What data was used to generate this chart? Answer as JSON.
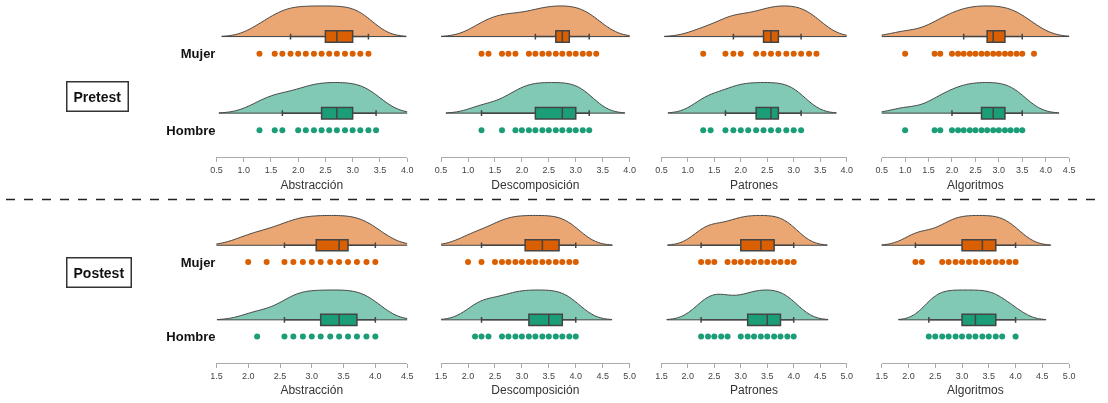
{
  "chart_data": [
    {
      "type": "box",
      "orientation": "horizontal",
      "categories": [
        "Mujer",
        "Hombre"
      ],
      "xlabel": "Abstracción",
      "xlim": [
        0.5,
        4.0
      ],
      "xticks": [
        0.5,
        {
          "value": 1,
          "label": "1.0"
        },
        1.5,
        {
          "value": 2,
          "label": "2.0"
        },
        2.5,
        {
          "value": 3,
          "label": "3.0"
        },
        3.5,
        {
          "value": 4,
          "label": "4.0"
        }
      ],
      "colors": [
        "#d95f02",
        "#1b9e77"
      ],
      "annotations": [
        "Pretest"
      ],
      "boxes": [
        {
          "low": 1.86,
          "q1": 2.5,
          "median": 2.71,
          "q3": 3.0,
          "high": 3.29
        },
        {
          "low": 1.71,
          "q1": 2.43,
          "median": 2.71,
          "q3": 3.0,
          "high": 3.43
        }
      ],
      "series": [
        {
          "type": "scatter",
          "color": "#d95f02",
          "x": [
            "Mujer",
            "Mujer",
            "Mujer",
            "Mujer",
            "Mujer",
            "Mujer",
            "Mujer",
            "Mujer",
            "Mujer",
            "Mujer",
            "Mujer",
            "Mujer",
            "Mujer",
            "Mujer"
          ],
          "values": [
            1.29,
            1.57,
            1.71,
            1.86,
            2.0,
            2.14,
            2.29,
            2.43,
            2.57,
            2.71,
            2.86,
            3.0,
            3.14,
            3.29
          ]
        },
        {
          "type": "scatter",
          "color": "#1b9e77",
          "x": [
            "Hombre",
            "Hombre",
            "Hombre",
            "Hombre",
            "Hombre",
            "Hombre",
            "Hombre",
            "Hombre",
            "Hombre",
            "Hombre",
            "Hombre",
            "Hombre",
            "Hombre",
            "Hombre"
          ],
          "values": [
            1.29,
            1.57,
            1.71,
            2.0,
            2.14,
            2.29,
            2.43,
            2.57,
            2.71,
            2.86,
            3.0,
            3.14,
            3.29,
            3.43
          ]
        }
      ]
    },
    {
      "type": "box",
      "orientation": "horizontal",
      "categories": [
        "Mujer",
        "Hombre"
      ],
      "tick_labels": "x",
      "xlabel": "Descomposición",
      "xlim": [
        0.5,
        4.0
      ],
      "xticks": [
        0.5,
        {
          "value": 1,
          "label": "1.0"
        },
        1.5,
        {
          "value": 2,
          "label": "2.0"
        },
        2.5,
        {
          "value": 3,
          "label": "3.0"
        },
        3.5,
        {
          "value": 4,
          "label": "4.0"
        }
      ],
      "colors": [
        "#d95f02",
        "#1b9e77"
      ],
      "boxes": [
        {
          "low": 2.25,
          "q1": 2.63,
          "median": 2.75,
          "q3": 2.88,
          "high": 3.25
        },
        {
          "low": 1.25,
          "q1": 2.25,
          "median": 2.75,
          "q3": 3.0,
          "high": 3.25
        }
      ],
      "series": [
        {
          "type": "scatter",
          "color": "#d95f02",
          "x": [
            "Mujer",
            "Mujer",
            "Mujer",
            "Mujer",
            "Mujer",
            "Mujer",
            "Mujer",
            "Mujer",
            "Mujer",
            "Mujer",
            "Mujer",
            "Mujer",
            "Mujer",
            "Mujer",
            "Mujer",
            "Mujer"
          ],
          "values": [
            1.25,
            1.38,
            1.63,
            1.75,
            1.88,
            2.13,
            2.25,
            2.38,
            2.5,
            2.63,
            2.75,
            2.88,
            3.0,
            3.13,
            3.25,
            3.38
          ]
        },
        {
          "type": "scatter",
          "color": "#1b9e77",
          "x": [
            "Hombre",
            "Hombre",
            "Hombre",
            "Hombre",
            "Hombre",
            "Hombre",
            "Hombre",
            "Hombre",
            "Hombre",
            "Hombre",
            "Hombre",
            "Hombre",
            "Hombre",
            "Hombre"
          ],
          "values": [
            1.25,
            1.63,
            1.88,
            2.0,
            2.13,
            2.25,
            2.38,
            2.5,
            2.63,
            2.75,
            2.88,
            3.0,
            3.13,
            3.25
          ]
        }
      ]
    },
    {
      "type": "box",
      "orientation": "horizontal",
      "categories": [
        "Mujer",
        "Hombre"
      ],
      "tick_labels": "x",
      "xlabel": "Patrones",
      "xlim": [
        0.5,
        4.0
      ],
      "xticks": [
        0.5,
        {
          "value": 1,
          "label": "1.0"
        },
        1.5,
        {
          "value": 2,
          "label": "2.0"
        },
        2.5,
        {
          "value": 3,
          "label": "3.0"
        },
        3.5,
        {
          "value": 4,
          "label": "4.0"
        }
      ],
      "colors": [
        "#d95f02",
        "#1b9e77"
      ],
      "boxes": [
        {
          "low": 1.86,
          "q1": 2.43,
          "median": 2.57,
          "q3": 2.71,
          "high": 3.14
        },
        {
          "low": 1.71,
          "q1": 2.29,
          "median": 2.57,
          "q3": 2.71,
          "high": 3.14
        }
      ],
      "series": [
        {
          "type": "scatter",
          "color": "#d95f02",
          "x": [
            "Mujer",
            "Mujer",
            "Mujer",
            "Mujer",
            "Mujer",
            "Mujer",
            "Mujer",
            "Mujer",
            "Mujer",
            "Mujer",
            "Mujer",
            "Mujer",
            "Mujer"
          ],
          "values": [
            1.29,
            1.71,
            1.86,
            2.0,
            2.29,
            2.43,
            2.57,
            2.71,
            2.86,
            3.0,
            3.14,
            3.29,
            3.43
          ]
        },
        {
          "type": "scatter",
          "color": "#1b9e77",
          "x": [
            "Hombre",
            "Hombre",
            "Hombre",
            "Hombre",
            "Hombre",
            "Hombre",
            "Hombre",
            "Hombre",
            "Hombre",
            "Hombre",
            "Hombre",
            "Hombre",
            "Hombre"
          ],
          "values": [
            1.29,
            1.43,
            1.71,
            1.86,
            2.0,
            2.14,
            2.29,
            2.43,
            2.57,
            2.71,
            2.86,
            3.0,
            3.14
          ]
        }
      ]
    },
    {
      "type": "box",
      "orientation": "horizontal",
      "categories": [
        "Mujer",
        "Hombre"
      ],
      "tick_labels": "x",
      "xlabel": "Algoritmos",
      "xlim": [
        0.5,
        4.5
      ],
      "xticks": [
        0.5,
        {
          "value": 1,
          "label": "1.0"
        },
        1.5,
        {
          "value": 2,
          "label": "2.0"
        },
        2.5,
        {
          "value": 3,
          "label": "3.0"
        },
        3.5,
        {
          "value": 4,
          "label": "4.0"
        },
        4.5
      ],
      "colors": [
        "#d95f02",
        "#1b9e77"
      ],
      "boxes": [
        {
          "low": 2.25,
          "q1": 2.75,
          "median": 2.88,
          "q3": 3.13,
          "high": 3.5
        },
        {
          "low": 2.0,
          "q1": 2.63,
          "median": 2.88,
          "q3": 3.13,
          "high": 3.5
        }
      ],
      "series": [
        {
          "type": "scatter",
          "color": "#d95f02",
          "x": [
            "Mujer",
            "Mujer",
            "Mujer",
            "Mujer",
            "Mujer",
            "Mujer",
            "Mujer",
            "Mujer",
            "Mujer",
            "Mujer",
            "Mujer",
            "Mujer",
            "Mujer",
            "Mujer",
            "Mujer",
            "Mujer",
            "Mujer"
          ],
          "values": [
            1.0,
            1.63,
            1.75,
            2.0,
            2.13,
            2.25,
            2.38,
            2.5,
            2.63,
            2.75,
            2.88,
            3.0,
            3.13,
            3.25,
            3.38,
            3.5,
            3.75
          ]
        },
        {
          "type": "scatter",
          "color": "#1b9e77",
          "x": [
            "Hombre",
            "Hombre",
            "Hombre",
            "Hombre",
            "Hombre",
            "Hombre",
            "Hombre",
            "Hombre",
            "Hombre",
            "Hombre",
            "Hombre",
            "Hombre",
            "Hombre",
            "Hombre",
            "Hombre",
            "Hombre"
          ],
          "values": [
            1.0,
            1.63,
            1.75,
            2.0,
            2.13,
            2.25,
            2.38,
            2.5,
            2.63,
            2.75,
            2.88,
            3.0,
            3.13,
            3.25,
            3.38,
            3.5
          ]
        }
      ]
    },
    {
      "type": "box",
      "orientation": "horizontal",
      "categories": [
        "Mujer",
        "Hombre"
      ],
      "xlabel": "Abstracción",
      "xlim": [
        1.5,
        4.5
      ],
      "xticks": [
        1.5,
        {
          "value": 2,
          "label": "2.0"
        },
        2.5,
        {
          "value": 3,
          "label": "3.0"
        },
        3.5,
        {
          "value": 4,
          "label": "4.0"
        },
        4.5
      ],
      "colors": [
        "#d95f02",
        "#1b9e77"
      ],
      "annotations": [
        "Postest"
      ],
      "boxes": [
        {
          "low": 2.57,
          "q1": 3.07,
          "median": 3.43,
          "q3": 3.57,
          "high": 4.0
        },
        {
          "low": 2.57,
          "q1": 3.14,
          "median": 3.43,
          "q3": 3.71,
          "high": 4.0
        }
      ],
      "series": [
        {
          "type": "scatter",
          "color": "#d95f02",
          "x": [
            "Mujer",
            "Mujer",
            "Mujer",
            "Mujer",
            "Mujer",
            "Mujer",
            "Mujer",
            "Mujer",
            "Mujer",
            "Mujer",
            "Mujer",
            "Mujer",
            "Mujer"
          ],
          "values": [
            2.0,
            2.29,
            2.57,
            2.71,
            2.86,
            3.0,
            3.14,
            3.29,
            3.43,
            3.57,
            3.71,
            3.86,
            4.0
          ]
        },
        {
          "type": "scatter",
          "color": "#1b9e77",
          "x": [
            "Hombre",
            "Hombre",
            "Hombre",
            "Hombre",
            "Hombre",
            "Hombre",
            "Hombre",
            "Hombre",
            "Hombre",
            "Hombre",
            "Hombre",
            "Hombre"
          ],
          "values": [
            2.14,
            2.57,
            2.71,
            2.86,
            3.0,
            3.14,
            3.29,
            3.43,
            3.57,
            3.71,
            3.86,
            4.0
          ]
        }
      ]
    },
    {
      "type": "box",
      "orientation": "horizontal",
      "categories": [
        "Mujer",
        "Hombre"
      ],
      "tick_labels": "x",
      "xlabel": "Descomposición",
      "xlim": [
        1.5,
        5.0
      ],
      "xticks": [
        1.5,
        {
          "value": 2,
          "label": "2.0"
        },
        2.5,
        {
          "value": 3,
          "label": "3.0"
        },
        3.5,
        {
          "value": 4,
          "label": "4.0"
        },
        4.5,
        {
          "value": 5,
          "label": "5.0"
        }
      ],
      "colors": [
        "#d95f02",
        "#1b9e77"
      ],
      "boxes": [
        {
          "low": 2.25,
          "q1": 3.06,
          "median": 3.38,
          "q3": 3.69,
          "high": 4.0
        },
        {
          "low": 2.25,
          "q1": 3.13,
          "median": 3.5,
          "q3": 3.75,
          "high": 4.0
        }
      ],
      "series": [
        {
          "type": "scatter",
          "color": "#d95f02",
          "x": [
            "Mujer",
            "Mujer",
            "Mujer",
            "Mujer",
            "Mujer",
            "Mujer",
            "Mujer",
            "Mujer",
            "Mujer",
            "Mujer",
            "Mujer",
            "Mujer",
            "Mujer",
            "Mujer",
            "Mujer"
          ],
          "values": [
            2.0,
            2.25,
            2.5,
            2.63,
            2.75,
            2.88,
            3.0,
            3.13,
            3.25,
            3.38,
            3.5,
            3.63,
            3.75,
            3.88,
            4.0
          ]
        },
        {
          "type": "scatter",
          "color": "#1b9e77",
          "x": [
            "Hombre",
            "Hombre",
            "Hombre",
            "Hombre",
            "Hombre",
            "Hombre",
            "Hombre",
            "Hombre",
            "Hombre",
            "Hombre",
            "Hombre",
            "Hombre",
            "Hombre",
            "Hombre",
            "Hombre"
          ],
          "values": [
            2.13,
            2.25,
            2.38,
            2.63,
            2.75,
            2.88,
            3.0,
            3.13,
            3.25,
            3.38,
            3.5,
            3.63,
            3.75,
            3.88,
            4.0
          ]
        }
      ]
    },
    {
      "type": "box",
      "orientation": "horizontal",
      "categories": [
        "Mujer",
        "Hombre"
      ],
      "tick_labels": "x",
      "xlabel": "Patrones",
      "xlim": [
        1.5,
        5.0
      ],
      "xticks": [
        1.5,
        {
          "value": 2,
          "label": "2.0"
        },
        2.5,
        {
          "value": 3,
          "label": "3.0"
        },
        3.5,
        {
          "value": 4,
          "label": "4.0"
        },
        4.5,
        {
          "value": 5,
          "label": "5.0"
        }
      ],
      "colors": [
        "#d95f02",
        "#1b9e77"
      ],
      "boxes": [
        {
          "low": 2.25,
          "q1": 3.0,
          "median": 3.38,
          "q3": 3.63,
          "high": 4.0
        },
        {
          "low": 2.25,
          "q1": 3.13,
          "median": 3.5,
          "q3": 3.75,
          "high": 4.0
        }
      ],
      "series": [
        {
          "type": "scatter",
          "color": "#d95f02",
          "x": [
            "Mujer",
            "Mujer",
            "Mujer",
            "Mujer",
            "Mujer",
            "Mujer",
            "Mujer",
            "Mujer",
            "Mujer",
            "Mujer",
            "Mujer",
            "Mujer",
            "Mujer",
            "Mujer"
          ],
          "values": [
            2.25,
            2.38,
            2.5,
            2.75,
            2.88,
            3.0,
            3.13,
            3.25,
            3.38,
            3.5,
            3.63,
            3.75,
            3.88,
            4.0
          ]
        },
        {
          "type": "scatter",
          "color": "#1b9e77",
          "x": [
            "Hombre",
            "Hombre",
            "Hombre",
            "Hombre",
            "Hombre",
            "Hombre",
            "Hombre",
            "Hombre",
            "Hombre",
            "Hombre",
            "Hombre",
            "Hombre",
            "Hombre",
            "Hombre"
          ],
          "values": [
            2.25,
            2.38,
            2.5,
            2.63,
            2.75,
            3.0,
            3.13,
            3.25,
            3.38,
            3.5,
            3.63,
            3.75,
            3.88,
            4.0
          ]
        }
      ]
    },
    {
      "type": "box",
      "orientation": "horizontal",
      "categories": [
        "Mujer",
        "Hombre"
      ],
      "tick_labels": "x",
      "xlabel": "Algoritmos",
      "xlim": [
        1.5,
        5.0
      ],
      "xticks": [
        1.5,
        {
          "value": 2,
          "label": "2.0"
        },
        2.5,
        {
          "value": 3,
          "label": "3.0"
        },
        3.5,
        {
          "value": 4,
          "label": "4.0"
        },
        4.5,
        {
          "value": 5,
          "label": "5.0"
        }
      ],
      "colors": [
        "#d95f02",
        "#1b9e77"
      ],
      "boxes": [
        {
          "low": 2.13,
          "q1": 3.0,
          "median": 3.38,
          "q3": 3.63,
          "high": 4.0
        },
        {
          "low": 2.38,
          "q1": 3.0,
          "median": 3.25,
          "q3": 3.63,
          "high": 4.0
        }
      ],
      "series": [
        {
          "type": "scatter",
          "color": "#d95f02",
          "x": [
            "Mujer",
            "Mujer",
            "Mujer",
            "Mujer",
            "Mujer",
            "Mujer",
            "Mujer",
            "Mujer",
            "Mujer",
            "Mujer",
            "Mujer",
            "Mujer",
            "Mujer",
            "Mujer"
          ],
          "values": [
            2.13,
            2.25,
            2.63,
            2.75,
            2.88,
            3.0,
            3.13,
            3.25,
            3.38,
            3.5,
            3.63,
            3.75,
            3.88,
            4.0
          ]
        },
        {
          "type": "scatter",
          "color": "#1b9e77",
          "x": [
            "Hombre",
            "Hombre",
            "Hombre",
            "Hombre",
            "Hombre",
            "Hombre",
            "Hombre",
            "Hombre",
            "Hombre",
            "Hombre",
            "Hombre",
            "Hombre",
            "Hombre"
          ],
          "values": [
            2.38,
            2.5,
            2.63,
            2.75,
            2.88,
            3.0,
            3.13,
            3.25,
            3.38,
            3.5,
            3.63,
            3.75,
            4.0
          ]
        }
      ]
    }
  ]
}
